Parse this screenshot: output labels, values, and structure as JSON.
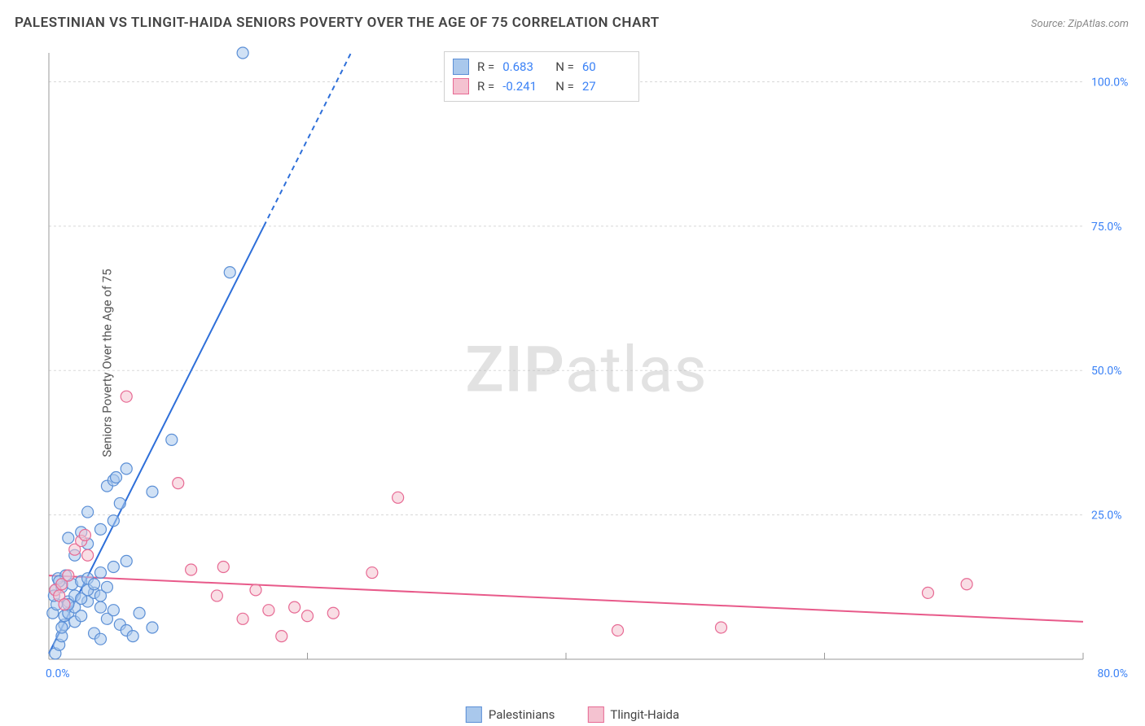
{
  "title": "PALESTINIAN VS TLINGIT-HAIDA SENIORS POVERTY OVER THE AGE OF 75 CORRELATION CHART",
  "source": "Source: ZipAtlas.com",
  "watermark_zip": "ZIP",
  "watermark_atlas": "atlas",
  "chart": {
    "type": "scatter",
    "background_color": "#ffffff",
    "grid_color": "#d8d8d8",
    "axis_color": "#999999",
    "tick_label_color": "#3b82f6",
    "ylabel": "Seniors Poverty Over the Age of 75",
    "ylabel_fontsize": 15,
    "xlim": [
      0,
      80
    ],
    "ylim": [
      0,
      105
    ],
    "xticks": [
      0,
      20,
      40,
      60,
      80
    ],
    "xtick_labels": [
      "0.0%",
      "",
      "",
      "",
      "80.0%"
    ],
    "yticks": [
      25,
      50,
      75,
      100
    ],
    "ytick_labels": [
      "25.0%",
      "50.0%",
      "75.0%",
      "100.0%"
    ],
    "marker_radius": 7,
    "marker_opacity": 0.55,
    "series": [
      {
        "name": "Palestinians",
        "label": "Palestinians",
        "fill_color": "#a9c8ec",
        "stroke_color": "#5b8fd6",
        "R": "0.683",
        "N": "60",
        "trend": {
          "type": "line",
          "slope": 4.45,
          "intercept": 1.0,
          "color": "#2e6fd9",
          "width": 2,
          "dash_above_y": 75
        },
        "points": [
          [
            0.5,
            1.0
          ],
          [
            0.8,
            2.5
          ],
          [
            1.0,
            4.0
          ],
          [
            1.2,
            6.0
          ],
          [
            0.3,
            8.0
          ],
          [
            0.6,
            9.5
          ],
          [
            1.5,
            10.0
          ],
          [
            2.0,
            11.0
          ],
          [
            0.5,
            12.0
          ],
          [
            1.0,
            12.5
          ],
          [
            1.8,
            13.0
          ],
          [
            2.5,
            13.5
          ],
          [
            0.7,
            14.0
          ],
          [
            1.3,
            14.5
          ],
          [
            3.0,
            10.0
          ],
          [
            3.5,
            11.5
          ],
          [
            4.0,
            9.0
          ],
          [
            4.5,
            7.0
          ],
          [
            5.0,
            8.5
          ],
          [
            5.5,
            6.0
          ],
          [
            6.0,
            5.0
          ],
          [
            6.5,
            4.0
          ],
          [
            3.0,
            14.0
          ],
          [
            4.0,
            15.0
          ],
          [
            5.0,
            16.0
          ],
          [
            6.0,
            17.0
          ],
          [
            2.0,
            18.0
          ],
          [
            3.0,
            20.0
          ],
          [
            1.5,
            21.0
          ],
          [
            2.5,
            22.0
          ],
          [
            4.0,
            22.5
          ],
          [
            5.0,
            24.0
          ],
          [
            3.0,
            25.5
          ],
          [
            5.5,
            27.0
          ],
          [
            4.5,
            30.0
          ],
          [
            5.0,
            31.0
          ],
          [
            5.2,
            31.5
          ],
          [
            6.0,
            33.0
          ],
          [
            8.0,
            29.0
          ],
          [
            9.5,
            38.0
          ],
          [
            14.0,
            67.0
          ],
          [
            15.0,
            105.0
          ],
          [
            1.0,
            5.5
          ],
          [
            1.2,
            7.5
          ],
          [
            1.5,
            8.0
          ],
          [
            2.0,
            9.0
          ],
          [
            2.5,
            10.5
          ],
          [
            3.0,
            12.0
          ],
          [
            3.5,
            13.0
          ],
          [
            0.4,
            11.0
          ],
          [
            0.8,
            13.5
          ],
          [
            1.5,
            9.5
          ],
          [
            2.0,
            6.5
          ],
          [
            2.5,
            7.5
          ],
          [
            4.0,
            11.0
          ],
          [
            4.5,
            12.5
          ],
          [
            7.0,
            8.0
          ],
          [
            8.0,
            5.5
          ],
          [
            3.5,
            4.5
          ],
          [
            4.0,
            3.5
          ]
        ]
      },
      {
        "name": "Tlingit-Haida",
        "label": "Tlingit-Haida",
        "fill_color": "#f4c2d0",
        "stroke_color": "#e76a94",
        "R": "-0.241",
        "N": "27",
        "trend": {
          "type": "line",
          "slope": -0.1,
          "intercept": 14.5,
          "color": "#e85a8a",
          "width": 2
        },
        "points": [
          [
            0.5,
            12.0
          ],
          [
            1.0,
            13.0
          ],
          [
            1.5,
            14.5
          ],
          [
            2.0,
            19.0
          ],
          [
            2.5,
            20.5
          ],
          [
            3.0,
            18.0
          ],
          [
            6.0,
            45.5
          ],
          [
            10.0,
            30.5
          ],
          [
            11.0,
            15.5
          ],
          [
            13.0,
            11.0
          ],
          [
            13.5,
            16.0
          ],
          [
            15.0,
            7.0
          ],
          [
            16.0,
            12.0
          ],
          [
            17.0,
            8.5
          ],
          [
            18.0,
            4.0
          ],
          [
            19.0,
            9.0
          ],
          [
            20.0,
            7.5
          ],
          [
            22.0,
            8.0
          ],
          [
            25.0,
            15.0
          ],
          [
            27.0,
            28.0
          ],
          [
            44.0,
            5.0
          ],
          [
            52.0,
            5.5
          ],
          [
            68.0,
            11.5
          ],
          [
            71.0,
            13.0
          ],
          [
            0.8,
            11.0
          ],
          [
            1.2,
            9.5
          ],
          [
            2.8,
            21.5
          ]
        ]
      }
    ],
    "correlation_legend": {
      "border_color": "#d0d0d0",
      "value_color": "#3b82f6",
      "label_color": "#444444"
    },
    "bottom_legend": {
      "items": [
        "Palestinians",
        "Tlingit-Haida"
      ]
    }
  }
}
